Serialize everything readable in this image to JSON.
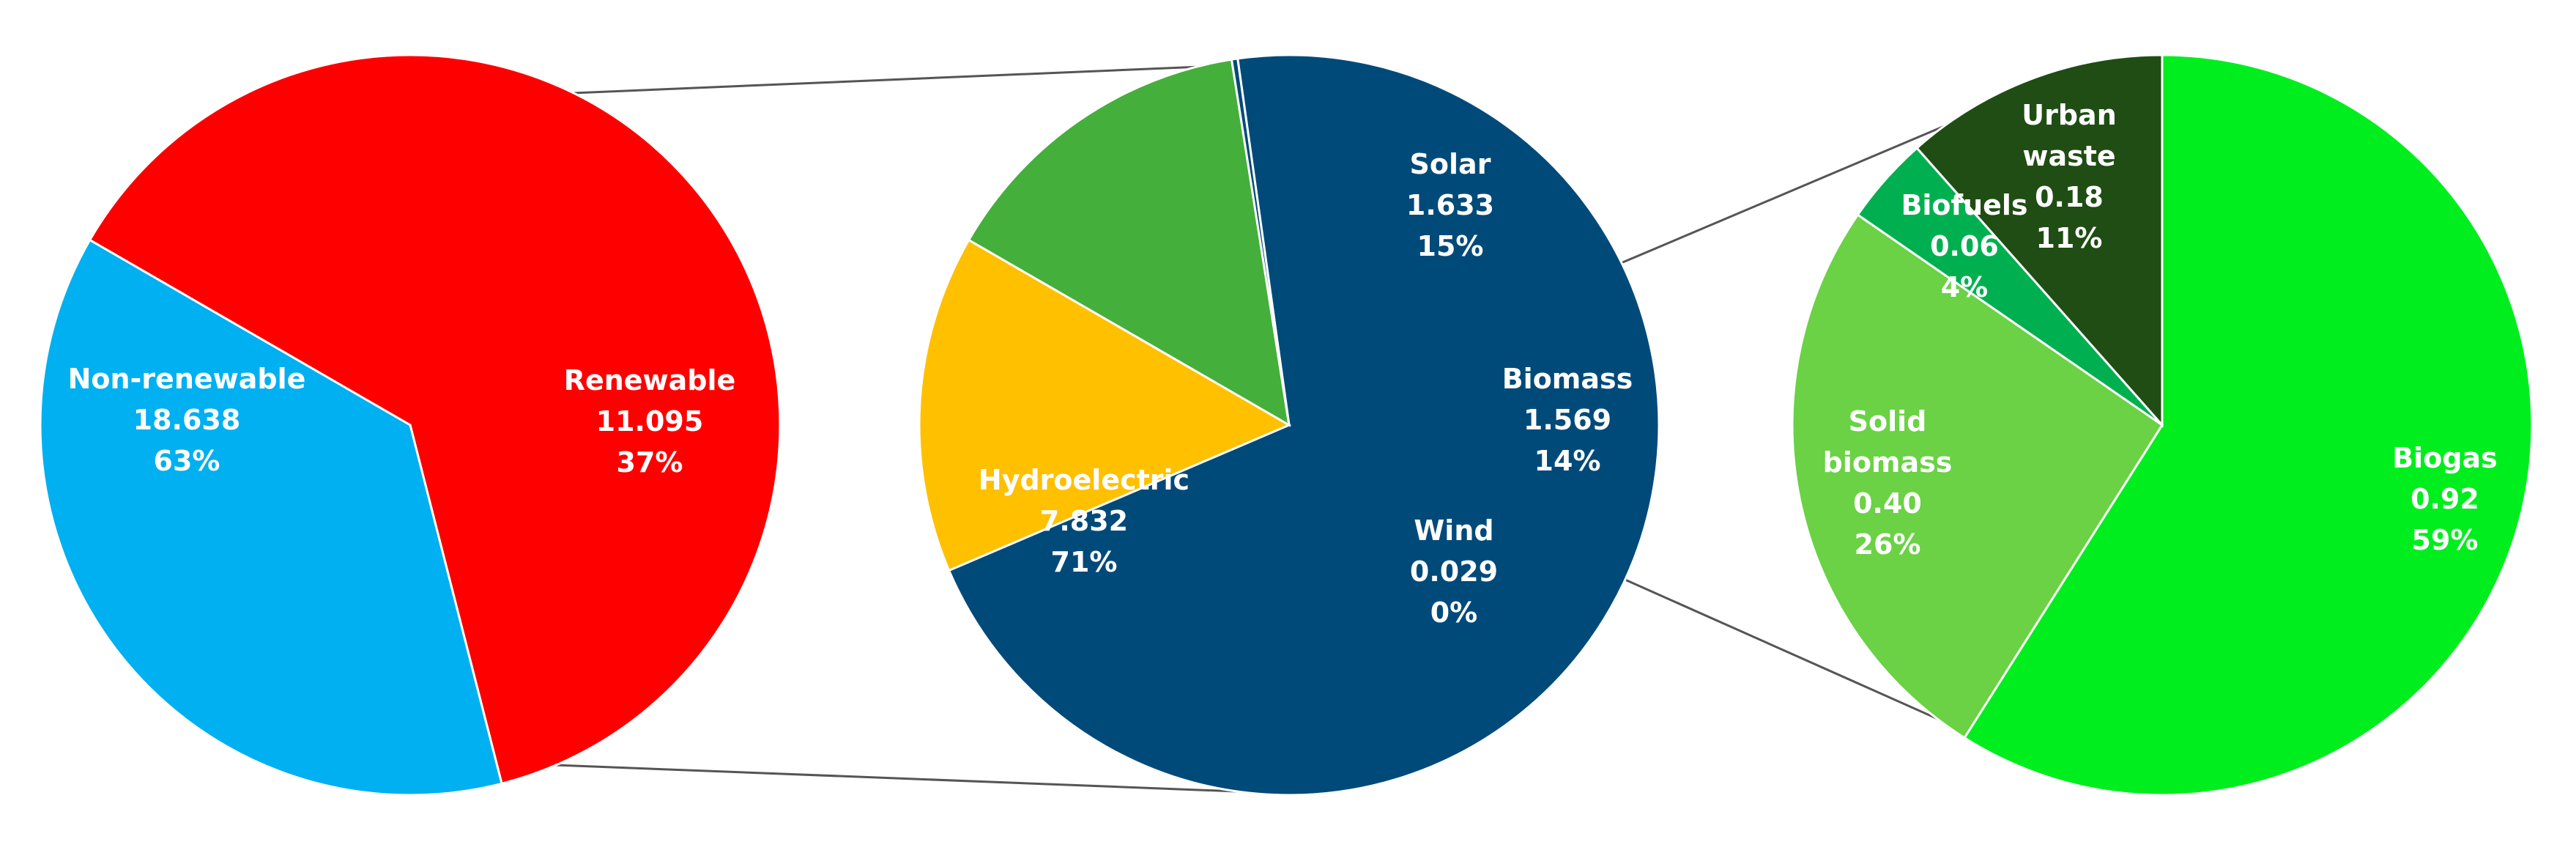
{
  "chart_data": [
    {
      "type": "pie",
      "slices": [
        {
          "label": "Non-renewable",
          "value": 18.638,
          "value_label": "18.638",
          "pct_label": "63%",
          "color": "#ff0000"
        },
        {
          "label": "Renewable",
          "value": 11.095,
          "value_label": "11.095",
          "pct_label": "37%",
          "color": "#00b0f0"
        }
      ]
    },
    {
      "type": "pie",
      "slices": [
        {
          "label": "Hydroelectric",
          "value": 7.832,
          "value_label": "7.832",
          "pct_label": "71%",
          "color": "#004a79"
        },
        {
          "label": "Solar",
          "value": 1.633,
          "value_label": "1.633",
          "pct_label": "15%",
          "color": "#ffc000"
        },
        {
          "label": "Biomass",
          "value": 1.569,
          "value_label": "1.569",
          "pct_label": "14%",
          "color": "#45af3b"
        },
        {
          "label": "Wind",
          "value": 0.029,
          "value_label": "0.029",
          "pct_label": "0%",
          "color": "#004a79"
        }
      ]
    },
    {
      "type": "pie",
      "slices": [
        {
          "label": "Biogas",
          "value": 0.92,
          "value_label": "0.92",
          "pct_label": "59%",
          "color": "#00ee1e"
        },
        {
          "label": "Solid biomass",
          "value": 0.4,
          "value_label": "0.40",
          "pct_label": "26%",
          "color": "#6ad244"
        },
        {
          "label": "Biofuels",
          "value": 0.06,
          "value_label": "0.06",
          "pct_label": "4%",
          "color": "#00b050"
        },
        {
          "label": "Urban waste",
          "value": 0.18,
          "value_label": "0.18",
          "pct_label": "11%",
          "color": "#1f4d14"
        }
      ]
    }
  ]
}
